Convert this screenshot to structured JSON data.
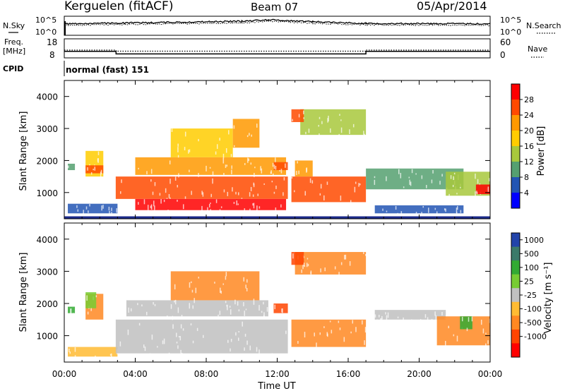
{
  "header": {
    "station": "Kerguelen (fitACF)",
    "beam": "Beam 07",
    "date": "05/Apr/2014"
  },
  "panels": {
    "nsky": {
      "label": "N.Sky",
      "left_ticks": [
        "10^5",
        "10^0"
      ],
      "right_ticks": [
        "10^5",
        "10^0"
      ],
      "right_label": "N.Search"
    },
    "freq": {
      "label_line1": "Freq.",
      "label_line2": "[MHz]",
      "left_ticks": [
        "18",
        "8"
      ],
      "right_ticks": [
        "60",
        "0"
      ],
      "right_label": "Nave"
    },
    "cpid": {
      "label": "CPID",
      "value": "normal (fast) 151"
    }
  },
  "axes": {
    "xlabel": "Time UT",
    "xticks": [
      "00:00",
      "04:00",
      "08:00",
      "12:00",
      "16:00",
      "20:00",
      "00:00"
    ],
    "ylabel": "Slant Range [km]",
    "yticks": [
      "1000",
      "2000",
      "3000",
      "4000"
    ]
  },
  "colorbars": {
    "power": {
      "label": "Power [dB]",
      "ticks": [
        "28",
        "24",
        "20",
        "16",
        "12",
        "8",
        "4"
      ],
      "colors": [
        "#ff0000",
        "#ff4a00",
        "#ff9900",
        "#ffcc00",
        "#a8c83c",
        "#55a070",
        "#2255b4",
        "#0000ff"
      ]
    },
    "velocity": {
      "label": "Velocity [m s⁻¹]",
      "ticks": [
        "1000",
        "500",
        "100",
        "25",
        "-25",
        "-100",
        "-500",
        "-1000"
      ],
      "colors": [
        "#2244aa",
        "#3c7a6a",
        "#33aa33",
        "#77cc33",
        "#c0c0c0",
        "#ffbb33",
        "#ff8822",
        "#ff4400",
        "#ff0000"
      ]
    }
  },
  "chart_data": [
    {
      "type": "line",
      "title": "N.Sky / N.Search",
      "x": [
        "00:00",
        "03:00",
        "10:00",
        "11:30",
        "14:00",
        "17:00",
        "00:00"
      ],
      "series": [
        {
          "name": "N.Sky",
          "values": [
            3000,
            5000,
            20000,
            60000,
            15000,
            4000,
            3000
          ]
        },
        {
          "name": "N.Search",
          "values": [
            1000,
            2000,
            6000,
            20000,
            5000,
            1500,
            1000
          ]
        }
      ]
    },
    {
      "type": "line",
      "title": "Freq. / Nave",
      "x": [
        "00:00",
        "02:55",
        "02:55",
        "17:00",
        "17:00",
        "00:00"
      ],
      "series": [
        {
          "name": "Freq.",
          "values": [
            12,
            12,
            10,
            10,
            12,
            12
          ]
        },
        {
          "name": "Nave",
          "values": [
            30,
            30,
            25,
            25,
            30,
            30
          ]
        }
      ]
    },
    {
      "type": "heatmap",
      "title": "Power [dB]",
      "xlabel": "Time UT",
      "ylabel": "Slant Range [km]",
      "xlim": [
        0,
        24
      ],
      "ylim": [
        180,
        4500
      ],
      "zlim": [
        0,
        30
      ],
      "cells": [
        {
          "t": [
            0.2,
            3.0
          ],
          "r": [
            350,
            650
          ],
          "z": 6
        },
        {
          "t": [
            0.2,
            0.6
          ],
          "r": [
            1700,
            1900
          ],
          "z": 10
        },
        {
          "t": [
            1.2,
            2.2
          ],
          "r": [
            1500,
            2300
          ],
          "z": 18
        },
        {
          "t": [
            1.2,
            2.2
          ],
          "r": [
            1600,
            1850
          ],
          "z": 26
        },
        {
          "t": [
            2.9,
            12.6
          ],
          "r": [
            800,
            1500
          ],
          "z": 26
        },
        {
          "t": [
            4.0,
            12.5
          ],
          "r": [
            450,
            800
          ],
          "z": 28
        },
        {
          "t": [
            4.0,
            12.5
          ],
          "r": [
            1550,
            2100
          ],
          "z": 20
        },
        {
          "t": [
            6.0,
            9.5
          ],
          "r": [
            2100,
            3000
          ],
          "z": 18
        },
        {
          "t": [
            9.5,
            11.0
          ],
          "r": [
            2400,
            3300
          ],
          "z": 22
        },
        {
          "t": [
            11.8,
            12.6
          ],
          "r": [
            1700,
            1950
          ],
          "z": 26
        },
        {
          "t": [
            12.8,
            17.0
          ],
          "r": [
            700,
            1500
          ],
          "z": 24
        },
        {
          "t": [
            13.3,
            17.0
          ],
          "r": [
            2800,
            3600
          ],
          "z": 14
        },
        {
          "t": [
            12.8,
            13.5
          ],
          "r": [
            3200,
            3600
          ],
          "z": 26
        },
        {
          "t": [
            13.0,
            14.0
          ],
          "r": [
            1500,
            2000
          ],
          "z": 20
        },
        {
          "t": [
            17.0,
            22.5
          ],
          "r": [
            1100,
            1750
          ],
          "z": 8
        },
        {
          "t": [
            17.5,
            22.5
          ],
          "r": [
            350,
            600
          ],
          "z": 7
        },
        {
          "t": [
            21.5,
            24.0
          ],
          "r": [
            900,
            1650
          ],
          "z": 14
        },
        {
          "t": [
            23.2,
            24.0
          ],
          "r": [
            950,
            1250
          ],
          "z": 28
        }
      ]
    },
    {
      "type": "heatmap",
      "title": "Velocity [m s⁻¹]",
      "xlabel": "Time UT",
      "ylabel": "Slant Range [km]",
      "xlim": [
        0,
        24
      ],
      "ylim": [
        180,
        4500
      ],
      "zlim": [
        -1000,
        1000
      ],
      "cells": [
        {
          "t": [
            0.2,
            3.0
          ],
          "r": [
            350,
            650
          ],
          "z": -60
        },
        {
          "t": [
            0.2,
            0.6
          ],
          "r": [
            1700,
            1900
          ],
          "z": 120
        },
        {
          "t": [
            1.2,
            2.2
          ],
          "r": [
            1500,
            2300
          ],
          "z": -250
        },
        {
          "t": [
            1.2,
            1.8
          ],
          "r": [
            1850,
            2350
          ],
          "z": 90
        },
        {
          "t": [
            2.9,
            12.6
          ],
          "r": [
            450,
            1500
          ],
          "z": 0
        },
        {
          "t": [
            3.5,
            11.5
          ],
          "r": [
            1600,
            2100
          ],
          "z": 0
        },
        {
          "t": [
            6.0,
            11.0
          ],
          "r": [
            2100,
            3000
          ],
          "z": -200
        },
        {
          "t": [
            11.8,
            12.6
          ],
          "r": [
            1700,
            2000
          ],
          "z": -600
        },
        {
          "t": [
            12.8,
            17.0
          ],
          "r": [
            650,
            1500
          ],
          "z": -300
        },
        {
          "t": [
            13.0,
            17.0
          ],
          "r": [
            2900,
            3600
          ],
          "z": -150
        },
        {
          "t": [
            12.8,
            13.5
          ],
          "r": [
            3200,
            3600
          ],
          "z": -700
        },
        {
          "t": [
            17.5,
            21.5
          ],
          "r": [
            1500,
            1800
          ],
          "z": 0
        },
        {
          "t": [
            21.0,
            24.0
          ],
          "r": [
            700,
            1600
          ],
          "z": -250
        },
        {
          "t": [
            22.3,
            23.0
          ],
          "r": [
            1200,
            1600
          ],
          "z": 200
        }
      ]
    }
  ]
}
